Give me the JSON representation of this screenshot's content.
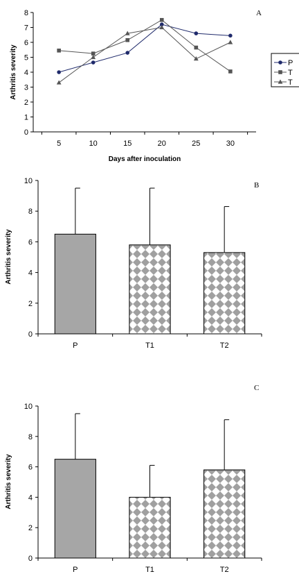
{
  "chart_data": [
    {
      "type": "line",
      "panel": "A",
      "xlabel": "Days after inoculation",
      "ylabel": "Arthritis severity",
      "x": [
        5,
        10,
        15,
        20,
        25,
        30
      ],
      "ylim": [
        0,
        8
      ],
      "yticks": [
        0,
        1,
        2,
        3,
        4,
        5,
        6,
        7,
        8
      ],
      "grid": false,
      "legend_position": "right",
      "series": [
        {
          "name": "P",
          "marker": "circle",
          "color": "#1f2a6b",
          "values": [
            4.0,
            4.65,
            5.3,
            7.2,
            6.6,
            6.45
          ]
        },
        {
          "name": "T",
          "marker": "square",
          "color": "#555555",
          "values": [
            5.45,
            5.25,
            6.15,
            7.5,
            5.65,
            4.05
          ]
        },
        {
          "name": "T",
          "marker": "triangle",
          "color": "#555555",
          "values": [
            3.3,
            5.0,
            6.6,
            7.0,
            4.9,
            6.0
          ]
        }
      ]
    },
    {
      "type": "bar",
      "panel": "B",
      "ylabel": "Arthritis severity",
      "categories": [
        "P",
        "T1",
        "T2"
      ],
      "values": [
        6.5,
        5.8,
        5.3
      ],
      "error_upper": [
        9.5,
        9.5,
        8.3
      ],
      "ylim": [
        0,
        10
      ],
      "yticks": [
        0,
        2,
        4,
        6,
        8,
        10
      ],
      "fills": [
        "solid",
        "diamond",
        "diamond"
      ],
      "colors": {
        "solid": "#a6a6a6",
        "pattern": "#a0a0a0"
      }
    },
    {
      "type": "bar",
      "panel": "C",
      "ylabel": "Arthritis severity",
      "categories": [
        "P",
        "T1",
        "T2"
      ],
      "values": [
        6.5,
        4.0,
        5.8
      ],
      "error_upper": [
        9.5,
        6.1,
        9.1
      ],
      "ylim": [
        0,
        10
      ],
      "yticks": [
        0,
        2,
        4,
        6,
        8,
        10
      ],
      "fills": [
        "solid",
        "diamond",
        "diamond"
      ],
      "colors": {
        "solid": "#a6a6a6",
        "pattern": "#a0a0a0"
      }
    }
  ]
}
